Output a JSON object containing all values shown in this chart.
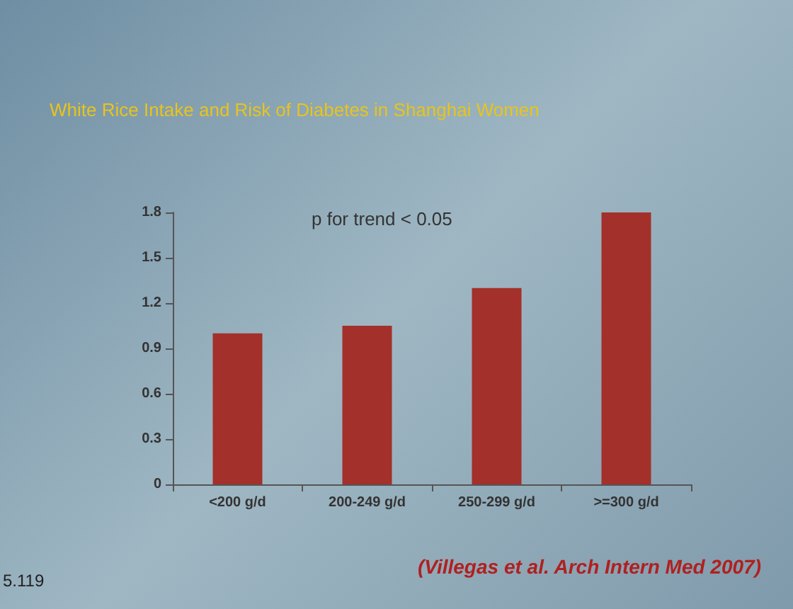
{
  "chart_data": {
    "type": "bar",
    "title": "White Rice Intake and Risk of Diabetes in Shanghai Women",
    "categories": [
      "<200 g/d",
      "200-249 g/d",
      "250-299 g/d",
      ">=300 g/d"
    ],
    "values": [
      1.0,
      1.05,
      1.3,
      1.8
    ],
    "color": "#a3302a",
    "ylim": [
      0,
      1.8
    ],
    "yticks": [
      0,
      0.3,
      0.6,
      0.9,
      1.2,
      1.5,
      1.8
    ],
    "grid": false,
    "annotations": [
      "p for trend < 0.05",
      "(Villegas et al. Arch Intern Med 2007)",
      "5.119"
    ]
  }
}
